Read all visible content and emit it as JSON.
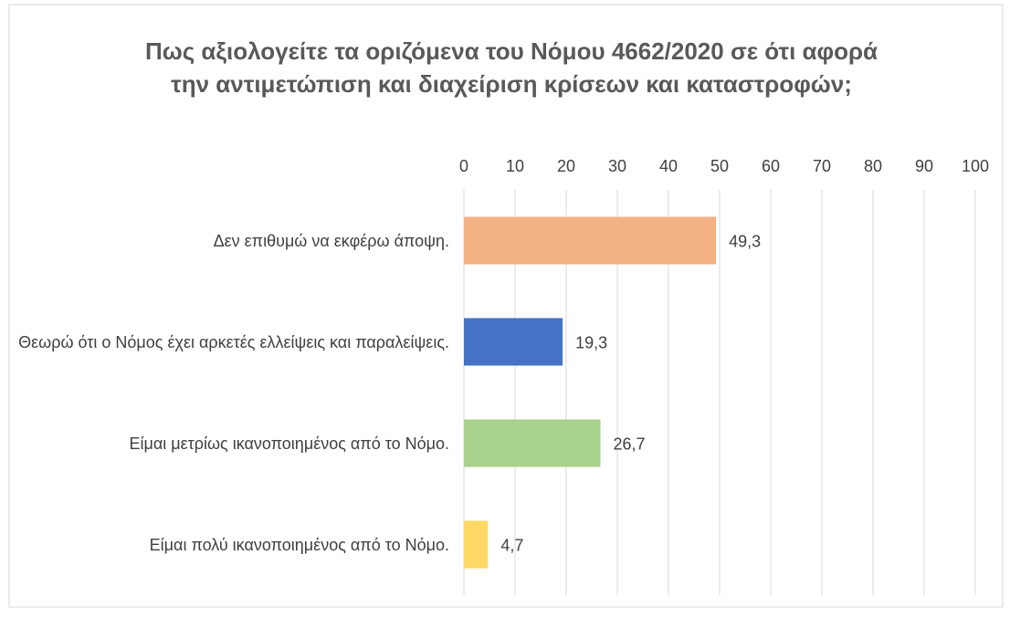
{
  "chart_data": {
    "type": "barh",
    "title": "Πως αξιολογείτε τα οριζόμενα του Νόμου 4662/2020 σε ότι αφορά την αντιμετώπιση και διαχείριση κρίσεων και καταστροφών;",
    "categories": [
      "Δεν επιθυμώ να εκφέρω άποψη.",
      "Θεωρώ ότι ο Νόμος έχει αρκετές ελλείψεις και παραλείψεις.",
      "Είμαι μετρίως ικανοποιημένος από το Νόμο.",
      "Είμαι πολύ ικανοποιημένος από το Νόμο."
    ],
    "values": [
      49.3,
      19.3,
      26.7,
      4.7
    ],
    "value_labels": [
      "49,3",
      "19,3",
      "26,7",
      "4,7"
    ],
    "colors": [
      "#f4b183",
      "#4472c4",
      "#a9d18e",
      "#ffd966"
    ],
    "xlim": [
      0,
      100
    ],
    "xticks": [
      0,
      10,
      20,
      30,
      40,
      50,
      60,
      70,
      80,
      90,
      100
    ],
    "grid": true
  }
}
